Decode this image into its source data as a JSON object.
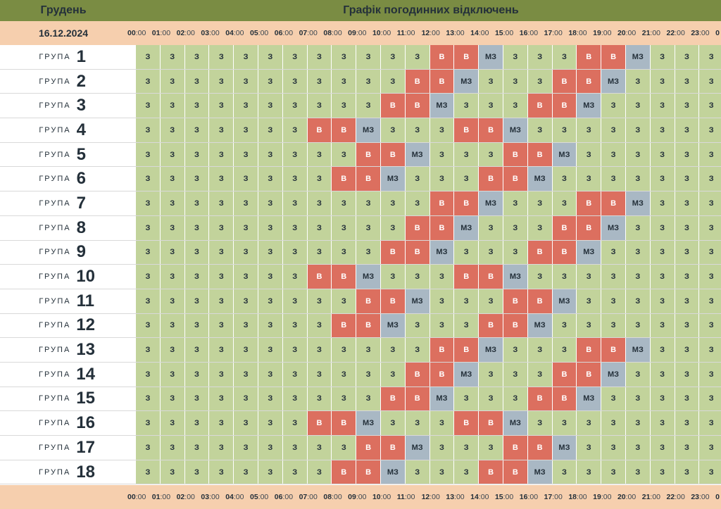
{
  "header": {
    "month": "Грудень",
    "title": "Графік погодинних відключень",
    "date": "16.12.2024"
  },
  "hours": [
    {
      "h": "00",
      "m": ":00"
    },
    {
      "h": "01",
      "m": ":00"
    },
    {
      "h": "02",
      "m": ":00"
    },
    {
      "h": "03",
      "m": ":00"
    },
    {
      "h": "04",
      "m": ":00"
    },
    {
      "h": "05",
      "m": ":00"
    },
    {
      "h": "06",
      "m": ":00"
    },
    {
      "h": "07",
      "m": ":00"
    },
    {
      "h": "08",
      "m": ":00"
    },
    {
      "h": "09",
      "m": ":00"
    },
    {
      "h": "10",
      "m": ":00"
    },
    {
      "h": "11",
      "m": ":00"
    },
    {
      "h": "12",
      "m": ":00"
    },
    {
      "h": "13",
      "m": ":00"
    },
    {
      "h": "14",
      "m": ":00"
    },
    {
      "h": "15",
      "m": ":00"
    },
    {
      "h": "16",
      "m": ":00"
    },
    {
      "h": "17",
      "m": ":00"
    },
    {
      "h": "18",
      "m": ":00"
    },
    {
      "h": "19",
      "m": ":00"
    },
    {
      "h": "20",
      "m": ":00"
    },
    {
      "h": "21",
      "m": ":00"
    },
    {
      "h": "22",
      "m": ":00"
    },
    {
      "h": "23",
      "m": ":00"
    },
    {
      "h": "0",
      "m": ""
    }
  ],
  "group_word": "ГРУПА",
  "status_codes": {
    "з": "З",
    "в": "В",
    "мз": "МЗ"
  },
  "colors": {
    "з": "#c2d39b",
    "в": "#dc6f5f",
    "мз": "#a9b8c4",
    "header": "#7a8c43",
    "hour_bar": "#f6cfae"
  },
  "groups": [
    {
      "number": "1",
      "cells": [
        "з",
        "з",
        "з",
        "з",
        "з",
        "з",
        "з",
        "з",
        "з",
        "з",
        "з",
        "з",
        "в",
        "в",
        "мз",
        "з",
        "з",
        "з",
        "в",
        "в",
        "мз",
        "з",
        "з",
        "з"
      ]
    },
    {
      "number": "2",
      "cells": [
        "з",
        "з",
        "з",
        "з",
        "з",
        "з",
        "з",
        "з",
        "з",
        "з",
        "з",
        "в",
        "в",
        "мз",
        "з",
        "з",
        "з",
        "в",
        "в",
        "мз",
        "з",
        "з",
        "з",
        "з"
      ]
    },
    {
      "number": "3",
      "cells": [
        "з",
        "з",
        "з",
        "з",
        "з",
        "з",
        "з",
        "з",
        "з",
        "з",
        "в",
        "в",
        "мз",
        "з",
        "з",
        "з",
        "в",
        "в",
        "мз",
        "з",
        "з",
        "з",
        "з",
        "з"
      ]
    },
    {
      "number": "4",
      "cells": [
        "з",
        "з",
        "з",
        "з",
        "з",
        "з",
        "з",
        "в",
        "в",
        "мз",
        "з",
        "з",
        "з",
        "в",
        "в",
        "мз",
        "з",
        "з",
        "з",
        "з",
        "з",
        "з",
        "з",
        "з"
      ]
    },
    {
      "number": "5",
      "cells": [
        "з",
        "з",
        "з",
        "з",
        "з",
        "з",
        "з",
        "з",
        "з",
        "в",
        "в",
        "мз",
        "з",
        "з",
        "з",
        "в",
        "в",
        "мз",
        "з",
        "з",
        "з",
        "з",
        "з",
        "з"
      ]
    },
    {
      "number": "6",
      "cells": [
        "з",
        "з",
        "з",
        "з",
        "з",
        "з",
        "з",
        "з",
        "в",
        "в",
        "мз",
        "з",
        "з",
        "з",
        "в",
        "в",
        "мз",
        "з",
        "з",
        "з",
        "з",
        "з",
        "з",
        "з"
      ]
    },
    {
      "number": "7",
      "cells": [
        "з",
        "з",
        "з",
        "з",
        "з",
        "з",
        "з",
        "з",
        "з",
        "з",
        "з",
        "з",
        "в",
        "в",
        "мз",
        "з",
        "з",
        "з",
        "в",
        "в",
        "мз",
        "з",
        "з",
        "з"
      ]
    },
    {
      "number": "8",
      "cells": [
        "з",
        "з",
        "з",
        "з",
        "з",
        "з",
        "з",
        "з",
        "з",
        "з",
        "з",
        "в",
        "в",
        "мз",
        "з",
        "з",
        "з",
        "в",
        "в",
        "мз",
        "з",
        "з",
        "з",
        "з"
      ]
    },
    {
      "number": "9",
      "cells": [
        "з",
        "з",
        "з",
        "з",
        "з",
        "з",
        "з",
        "з",
        "з",
        "з",
        "в",
        "в",
        "мз",
        "з",
        "з",
        "з",
        "в",
        "в",
        "мз",
        "з",
        "з",
        "з",
        "з",
        "з"
      ]
    },
    {
      "number": "10",
      "cells": [
        "з",
        "з",
        "з",
        "з",
        "з",
        "з",
        "з",
        "в",
        "в",
        "мз",
        "з",
        "з",
        "з",
        "в",
        "в",
        "мз",
        "з",
        "з",
        "з",
        "з",
        "з",
        "з",
        "з",
        "з"
      ]
    },
    {
      "number": "11",
      "cells": [
        "з",
        "з",
        "з",
        "з",
        "з",
        "з",
        "з",
        "з",
        "з",
        "в",
        "в",
        "мз",
        "з",
        "з",
        "з",
        "в",
        "в",
        "мз",
        "з",
        "з",
        "з",
        "з",
        "з",
        "з"
      ]
    },
    {
      "number": "12",
      "cells": [
        "з",
        "з",
        "з",
        "з",
        "з",
        "з",
        "з",
        "з",
        "в",
        "в",
        "мз",
        "з",
        "з",
        "з",
        "в",
        "в",
        "мз",
        "з",
        "з",
        "з",
        "з",
        "з",
        "з",
        "з"
      ]
    },
    {
      "number": "13",
      "cells": [
        "з",
        "з",
        "з",
        "з",
        "з",
        "з",
        "з",
        "з",
        "з",
        "з",
        "з",
        "з",
        "в",
        "в",
        "мз",
        "з",
        "з",
        "з",
        "в",
        "в",
        "мз",
        "з",
        "з",
        "з"
      ]
    },
    {
      "number": "14",
      "cells": [
        "з",
        "з",
        "з",
        "з",
        "з",
        "з",
        "з",
        "з",
        "з",
        "з",
        "з",
        "в",
        "в",
        "мз",
        "з",
        "з",
        "з",
        "в",
        "в",
        "мз",
        "з",
        "з",
        "з",
        "з"
      ]
    },
    {
      "number": "15",
      "cells": [
        "з",
        "з",
        "з",
        "з",
        "з",
        "з",
        "з",
        "з",
        "з",
        "з",
        "в",
        "в",
        "мз",
        "з",
        "з",
        "з",
        "в",
        "в",
        "мз",
        "з",
        "з",
        "з",
        "з",
        "з"
      ]
    },
    {
      "number": "16",
      "cells": [
        "з",
        "з",
        "з",
        "з",
        "з",
        "з",
        "з",
        "в",
        "в",
        "мз",
        "з",
        "з",
        "з",
        "в",
        "в",
        "мз",
        "з",
        "з",
        "з",
        "з",
        "з",
        "з",
        "з",
        "з"
      ]
    },
    {
      "number": "17",
      "cells": [
        "з",
        "з",
        "з",
        "з",
        "з",
        "з",
        "з",
        "з",
        "з",
        "в",
        "в",
        "мз",
        "з",
        "з",
        "з",
        "в",
        "в",
        "мз",
        "з",
        "з",
        "з",
        "з",
        "з",
        "з"
      ]
    },
    {
      "number": "18",
      "cells": [
        "з",
        "з",
        "з",
        "з",
        "з",
        "з",
        "з",
        "з",
        "в",
        "в",
        "мз",
        "з",
        "з",
        "з",
        "в",
        "в",
        "мз",
        "з",
        "з",
        "з",
        "з",
        "з",
        "з",
        "з"
      ]
    }
  ]
}
